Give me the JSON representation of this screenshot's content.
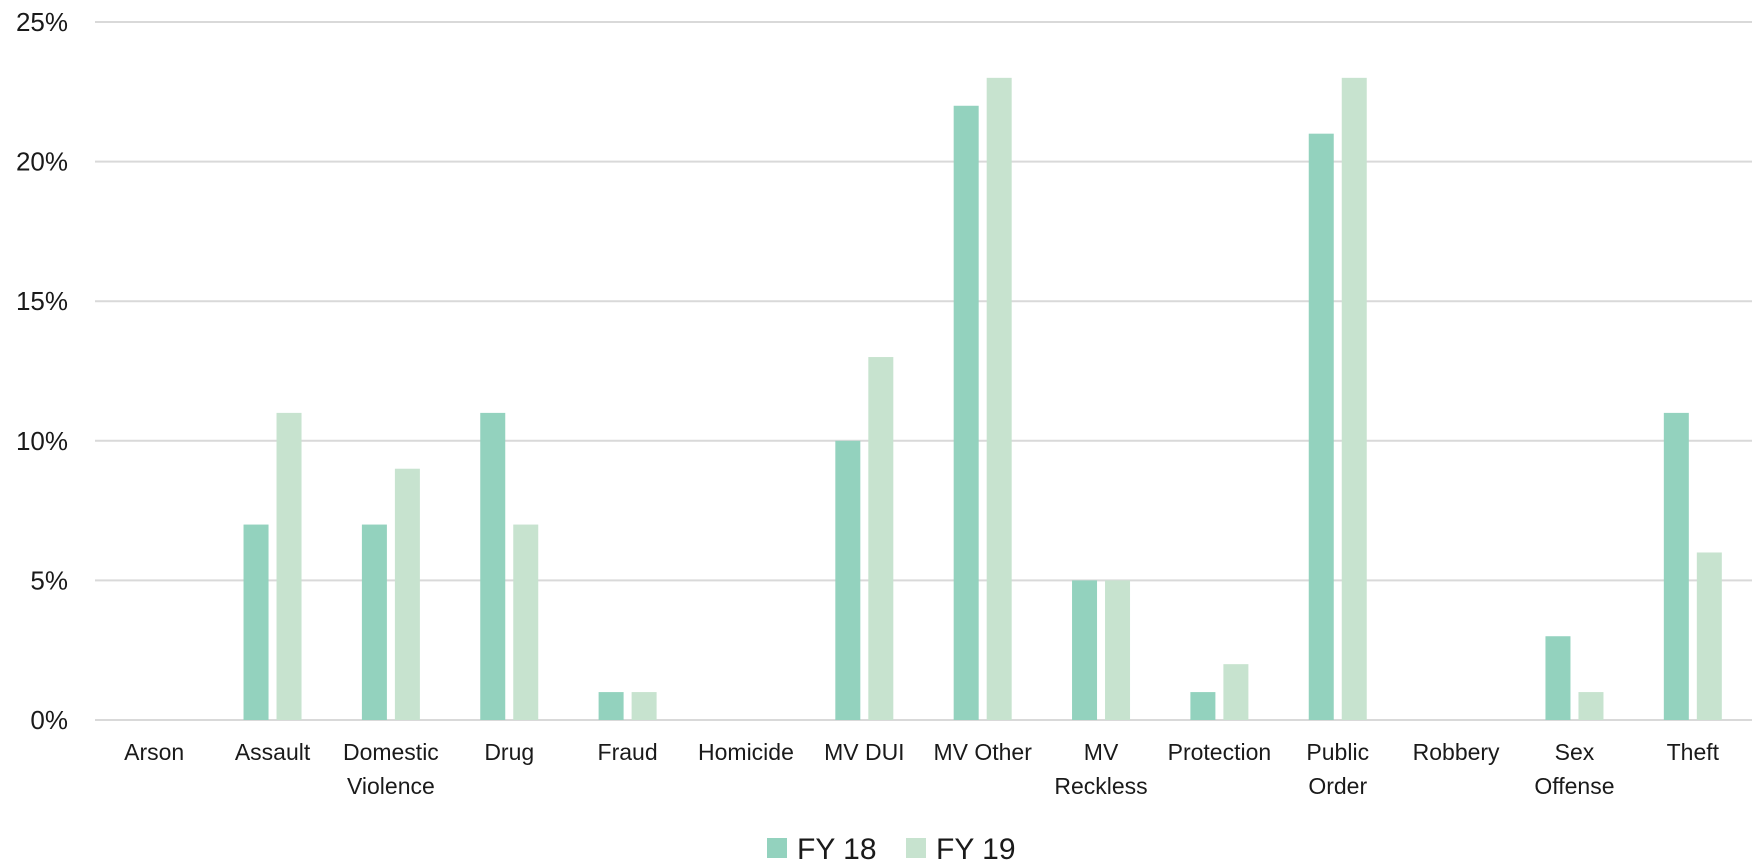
{
  "chart_data": {
    "type": "bar",
    "categories": [
      "Arson",
      "Assault",
      "Domestic Violence",
      "Drug",
      "Fraud",
      "Homicide",
      "MV DUI",
      "MV Other",
      "MV Reckless",
      "Protection",
      "Public Order",
      "Robbery",
      "Sex Offense",
      "Theft"
    ],
    "category_lines": [
      [
        "Arson"
      ],
      [
        "Assault"
      ],
      [
        "Domestic",
        "Violence"
      ],
      [
        "Drug"
      ],
      [
        "Fraud"
      ],
      [
        "Homicide"
      ],
      [
        "MV DUI"
      ],
      [
        "MV Other"
      ],
      [
        "MV",
        "Reckless"
      ],
      [
        "Protection"
      ],
      [
        "Public",
        "Order"
      ],
      [
        "Robbery"
      ],
      [
        "Sex",
        "Offense"
      ],
      [
        "Theft"
      ]
    ],
    "series": [
      {
        "name": "FY 18",
        "color": "#93d2be",
        "values": [
          0,
          7,
          7,
          11,
          1,
          0,
          10,
          22,
          5,
          1,
          21,
          0,
          3,
          11
        ]
      },
      {
        "name": "FY 19",
        "color": "#c7e3cf",
        "values": [
          0,
          11,
          9,
          7,
          1,
          0,
          13,
          23,
          5,
          2,
          23,
          0,
          1,
          6
        ]
      }
    ],
    "ylim": [
      0,
      25
    ],
    "y_ticks": [
      0,
      5,
      10,
      15,
      20,
      25
    ],
    "y_tick_labels": [
      "0%",
      "5%",
      "10%",
      "15%",
      "20%",
      "25%"
    ],
    "grid": true,
    "legend_position": "bottom",
    "title": "",
    "xlabel": "",
    "ylabel": ""
  }
}
